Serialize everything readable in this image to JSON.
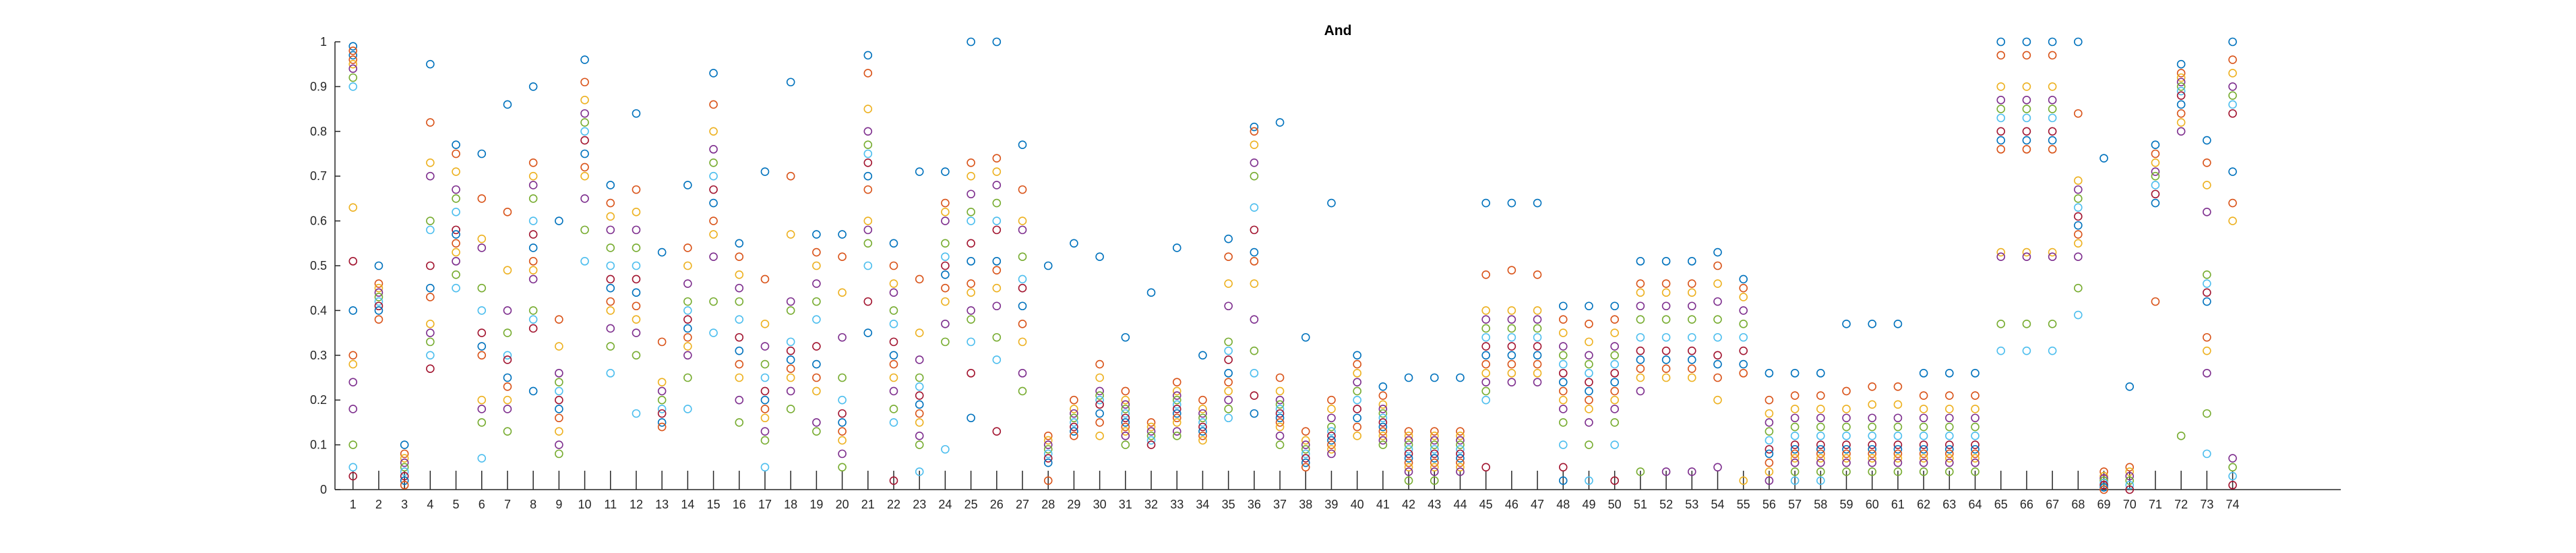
{
  "chart_data": {
    "type": "scatter",
    "title": "And",
    "xlabel": "",
    "ylabel": "",
    "xlim": [
      0.3,
      78.2
    ],
    "ylim": [
      0,
      1
    ],
    "grid": false,
    "legend": "none",
    "x_ticks": [
      "1",
      "2",
      "3",
      "4",
      "5",
      "6",
      "7",
      "8",
      "9",
      "10",
      "11",
      "12",
      "13",
      "14",
      "15",
      "16",
      "17",
      "18",
      "19",
      "20",
      "21",
      "22",
      "23",
      "24",
      "25",
      "26",
      "27",
      "28",
      "29",
      "30",
      "31",
      "32",
      "33",
      "34",
      "35",
      "36",
      "37",
      "38",
      "39",
      "40",
      "41",
      "42",
      "43",
      "44",
      "45",
      "46",
      "47",
      "48",
      "49",
      "50",
      "51",
      "52",
      "53",
      "54",
      "55",
      "56",
      "57",
      "58",
      "59",
      "60",
      "61",
      "62",
      "63",
      "64",
      "65",
      "66",
      "67",
      "68",
      "69",
      "70",
      "71",
      "72",
      "73",
      "74"
    ],
    "y_ticks": [
      "0",
      "0.1",
      "0.2",
      "0.3",
      "0.4",
      "0.5",
      "0.6",
      "0.7",
      "0.8",
      "0.9",
      "1"
    ],
    "marker": "open-circle",
    "palette": [
      "#0072bd",
      "#d95319",
      "#edb120",
      "#7e2f8e",
      "#77ac30",
      "#4dbeee",
      "#a2142f"
    ],
    "series": [
      {
        "x": 1,
        "y": [
          0.97,
          0.96,
          0.95,
          0.94,
          0.92,
          0.9,
          0.51,
          0.4,
          0.3,
          0.28,
          0.18,
          0.1,
          0.05,
          0.03,
          0.99,
          0.98,
          0.63,
          0.24
        ]
      },
      {
        "x": 2,
        "y": [
          0.5,
          0.46,
          0.45,
          0.44,
          0.43,
          0.42,
          0.41,
          0.4,
          0.38
        ]
      },
      {
        "x": 3,
        "y": [
          0.1,
          0.08,
          0.07,
          0.06,
          0.05,
          0.04,
          0.03,
          0.02,
          0.01
        ]
      },
      {
        "x": 4,
        "y": [
          0.95,
          0.82,
          0.73,
          0.7,
          0.6,
          0.58,
          0.5,
          0.45,
          0.43,
          0.37,
          0.35,
          0.33,
          0.3,
          0.27
        ]
      },
      {
        "x": 5,
        "y": [
          0.77,
          0.75,
          0.71,
          0.67,
          0.65,
          0.62,
          0.58,
          0.57,
          0.55,
          0.53,
          0.51,
          0.48,
          0.45
        ]
      },
      {
        "x": 6,
        "y": [
          0.75,
          0.65,
          0.56,
          0.54,
          0.45,
          0.4,
          0.35,
          0.32,
          0.3,
          0.2,
          0.18,
          0.15,
          0.07
        ]
      },
      {
        "x": 7,
        "y": [
          0.86,
          0.62,
          0.49,
          0.4,
          0.35,
          0.3,
          0.29,
          0.25,
          0.23,
          0.2,
          0.18,
          0.13
        ]
      },
      {
        "x": 8,
        "y": [
          0.9,
          0.73,
          0.7,
          0.68,
          0.65,
          0.6,
          0.57,
          0.54,
          0.51,
          0.49,
          0.47,
          0.4,
          0.38,
          0.36,
          0.22
        ]
      },
      {
        "x": 9,
        "y": [
          0.6,
          0.38,
          0.32,
          0.26,
          0.24,
          0.22,
          0.2,
          0.18,
          0.16,
          0.13,
          0.1,
          0.08
        ]
      },
      {
        "x": 10,
        "y": [
          0.96,
          0.91,
          0.87,
          0.84,
          0.82,
          0.8,
          0.78,
          0.75,
          0.72,
          0.7,
          0.65,
          0.58,
          0.51
        ]
      },
      {
        "x": 11,
        "y": [
          0.68,
          0.64,
          0.61,
          0.58,
          0.54,
          0.5,
          0.47,
          0.45,
          0.42,
          0.4,
          0.36,
          0.32,
          0.26
        ]
      },
      {
        "x": 12,
        "y": [
          0.84,
          0.67,
          0.62,
          0.58,
          0.54,
          0.5,
          0.47,
          0.44,
          0.41,
          0.38,
          0.35,
          0.3,
          0.17
        ]
      },
      {
        "x": 13,
        "y": [
          0.53,
          0.33,
          0.24,
          0.22,
          0.2,
          0.18,
          0.17,
          0.15,
          0.14
        ]
      },
      {
        "x": 14,
        "y": [
          0.68,
          0.54,
          0.5,
          0.46,
          0.42,
          0.4,
          0.38,
          0.36,
          0.34,
          0.32,
          0.3,
          0.25,
          0.18
        ]
      },
      {
        "x": 15,
        "y": [
          0.93,
          0.86,
          0.8,
          0.76,
          0.73,
          0.7,
          0.67,
          0.64,
          0.6,
          0.57,
          0.52,
          0.42,
          0.35
        ]
      },
      {
        "x": 16,
        "y": [
          0.55,
          0.52,
          0.48,
          0.45,
          0.42,
          0.38,
          0.34,
          0.31,
          0.28,
          0.25,
          0.2,
          0.15
        ]
      },
      {
        "x": 17,
        "y": [
          0.71,
          0.47,
          0.37,
          0.32,
          0.28,
          0.25,
          0.22,
          0.2,
          0.18,
          0.16,
          0.13,
          0.11,
          0.05
        ]
      },
      {
        "x": 18,
        "y": [
          0.91,
          0.7,
          0.57,
          0.42,
          0.4,
          0.33,
          0.31,
          0.29,
          0.27,
          0.25,
          0.22,
          0.18
        ]
      },
      {
        "x": 19,
        "y": [
          0.57,
          0.53,
          0.5,
          0.46,
          0.42,
          0.38,
          0.32,
          0.28,
          0.25,
          0.22,
          0.15,
          0.13
        ]
      },
      {
        "x": 20,
        "y": [
          0.57,
          0.52,
          0.44,
          0.34,
          0.25,
          0.2,
          0.17,
          0.15,
          0.13,
          0.11,
          0.08,
          0.05
        ]
      },
      {
        "x": 21,
        "y": [
          0.97,
          0.93,
          0.85,
          0.8,
          0.77,
          0.75,
          0.73,
          0.7,
          0.67,
          0.6,
          0.58,
          0.55,
          0.5,
          0.42,
          0.35
        ]
      },
      {
        "x": 22,
        "y": [
          0.55,
          0.5,
          0.46,
          0.44,
          0.4,
          0.37,
          0.33,
          0.3,
          0.28,
          0.25,
          0.22,
          0.18,
          0.15,
          0.02
        ]
      },
      {
        "x": 23,
        "y": [
          0.71,
          0.47,
          0.35,
          0.29,
          0.25,
          0.23,
          0.21,
          0.19,
          0.17,
          0.15,
          0.12,
          0.1,
          0.04
        ]
      },
      {
        "x": 24,
        "y": [
          0.71,
          0.64,
          0.62,
          0.6,
          0.55,
          0.52,
          0.5,
          0.48,
          0.45,
          0.42,
          0.37,
          0.33,
          0.09
        ]
      },
      {
        "x": 25,
        "y": [
          1.0,
          0.73,
          0.7,
          0.66,
          0.62,
          0.6,
          0.55,
          0.51,
          0.46,
          0.44,
          0.4,
          0.38,
          0.33,
          0.26,
          0.16
        ]
      },
      {
        "x": 26,
        "y": [
          1.0,
          0.74,
          0.71,
          0.68,
          0.64,
          0.6,
          0.58,
          0.51,
          0.49,
          0.45,
          0.41,
          0.34,
          0.29,
          0.13
        ]
      },
      {
        "x": 27,
        "y": [
          0.77,
          0.67,
          0.6,
          0.58,
          0.52,
          0.47,
          0.45,
          0.41,
          0.37,
          0.33,
          0.26,
          0.22
        ]
      },
      {
        "x": 28,
        "y": [
          0.5,
          0.12,
          0.11,
          0.1,
          0.09,
          0.08,
          0.07,
          0.06,
          0.02
        ]
      },
      {
        "x": 29,
        "y": [
          0.55,
          0.2,
          0.18,
          0.17,
          0.16,
          0.15,
          0.14,
          0.13,
          0.12
        ]
      },
      {
        "x": 30,
        "y": [
          0.52,
          0.28,
          0.25,
          0.22,
          0.21,
          0.2,
          0.19,
          0.17,
          0.15,
          0.12
        ]
      },
      {
        "x": 31,
        "y": [
          0.34,
          0.22,
          0.2,
          0.19,
          0.18,
          0.17,
          0.16,
          0.15,
          0.14,
          0.13,
          0.12,
          0.1
        ]
      },
      {
        "x": 32,
        "y": [
          0.44,
          0.15,
          0.14,
          0.13,
          0.12,
          0.11,
          0.1
        ]
      },
      {
        "x": 33,
        "y": [
          0.54,
          0.24,
          0.22,
          0.21,
          0.2,
          0.19,
          0.18,
          0.17,
          0.16,
          0.15,
          0.13,
          0.12
        ]
      },
      {
        "x": 34,
        "y": [
          0.3,
          0.2,
          0.18,
          0.17,
          0.16,
          0.15,
          0.14,
          0.13,
          0.12,
          0.11
        ]
      },
      {
        "x": 35,
        "y": [
          0.56,
          0.52,
          0.46,
          0.41,
          0.33,
          0.31,
          0.29,
          0.26,
          0.24,
          0.22,
          0.2,
          0.18,
          0.16
        ]
      },
      {
        "x": 36,
        "y": [
          0.81,
          0.8,
          0.77,
          0.73,
          0.7,
          0.63,
          0.58,
          0.53,
          0.51,
          0.46,
          0.38,
          0.31,
          0.26,
          0.21,
          0.17
        ]
      },
      {
        "x": 37,
        "y": [
          0.82,
          0.25,
          0.22,
          0.2,
          0.19,
          0.18,
          0.17,
          0.16,
          0.15,
          0.14,
          0.12,
          0.1
        ]
      },
      {
        "x": 38,
        "y": [
          0.34,
          0.13,
          0.11,
          0.1,
          0.09,
          0.08,
          0.07,
          0.06,
          0.05
        ]
      },
      {
        "x": 39,
        "y": [
          0.64,
          0.2,
          0.18,
          0.16,
          0.14,
          0.13,
          0.12,
          0.11,
          0.1,
          0.09,
          0.08
        ]
      },
      {
        "x": 40,
        "y": [
          0.3,
          0.28,
          0.26,
          0.24,
          0.22,
          0.2,
          0.18,
          0.16,
          0.14,
          0.12
        ]
      },
      {
        "x": 41,
        "y": [
          0.23,
          0.21,
          0.19,
          0.18,
          0.17,
          0.16,
          0.15,
          0.14,
          0.13,
          0.12,
          0.11,
          0.1
        ]
      },
      {
        "x": 42,
        "y": [
          0.25,
          0.13,
          0.12,
          0.11,
          0.1,
          0.09,
          0.08,
          0.07,
          0.06,
          0.05,
          0.04,
          0.02
        ]
      },
      {
        "x": 43,
        "y": [
          0.25,
          0.13,
          0.12,
          0.11,
          0.1,
          0.09,
          0.08,
          0.07,
          0.06,
          0.05,
          0.04,
          0.02
        ]
      },
      {
        "x": 44,
        "y": [
          0.25,
          0.13,
          0.12,
          0.11,
          0.1,
          0.09,
          0.08,
          0.07,
          0.06,
          0.05,
          0.04
        ]
      },
      {
        "x": 45,
        "y": [
          0.64,
          0.48,
          0.4,
          0.38,
          0.36,
          0.34,
          0.32,
          0.3,
          0.28,
          0.26,
          0.24,
          0.22,
          0.2,
          0.05
        ]
      },
      {
        "x": 46,
        "y": [
          0.64,
          0.49,
          0.4,
          0.38,
          0.36,
          0.34,
          0.32,
          0.3,
          0.28,
          0.26,
          0.24
        ]
      },
      {
        "x": 47,
        "y": [
          0.64,
          0.48,
          0.4,
          0.38,
          0.36,
          0.34,
          0.32,
          0.3,
          0.28,
          0.26,
          0.24
        ]
      },
      {
        "x": 48,
        "y": [
          0.41,
          0.38,
          0.35,
          0.32,
          0.3,
          0.28,
          0.26,
          0.24,
          0.22,
          0.2,
          0.18,
          0.15,
          0.1,
          0.05,
          0.02
        ]
      },
      {
        "x": 49,
        "y": [
          0.41,
          0.37,
          0.33,
          0.3,
          0.28,
          0.26,
          0.24,
          0.22,
          0.2,
          0.18,
          0.15,
          0.1,
          0.02
        ]
      },
      {
        "x": 50,
        "y": [
          0.41,
          0.38,
          0.35,
          0.32,
          0.3,
          0.28,
          0.26,
          0.24,
          0.22,
          0.2,
          0.18,
          0.15,
          0.1,
          0.02
        ]
      },
      {
        "x": 51,
        "y": [
          0.51,
          0.46,
          0.44,
          0.41,
          0.38,
          0.34,
          0.31,
          0.29,
          0.27,
          0.25,
          0.22,
          0.04
        ]
      },
      {
        "x": 52,
        "y": [
          0.51,
          0.46,
          0.44,
          0.41,
          0.38,
          0.34,
          0.31,
          0.29,
          0.27,
          0.25,
          0.04
        ]
      },
      {
        "x": 53,
        "y": [
          0.51,
          0.46,
          0.44,
          0.41,
          0.38,
          0.34,
          0.31,
          0.29,
          0.27,
          0.25,
          0.04
        ]
      },
      {
        "x": 54,
        "y": [
          0.53,
          0.5,
          0.46,
          0.42,
          0.38,
          0.34,
          0.3,
          0.28,
          0.25,
          0.2,
          0.05
        ]
      },
      {
        "x": 55,
        "y": [
          0.47,
          0.45,
          0.43,
          0.4,
          0.37,
          0.34,
          0.31,
          0.28,
          0.26,
          0.02
        ]
      },
      {
        "x": 56,
        "y": [
          0.26,
          0.2,
          0.17,
          0.15,
          0.13,
          0.11,
          0.09,
          0.08,
          0.06,
          0.04,
          0.02
        ]
      },
      {
        "x": 57,
        "y": [
          0.26,
          0.21,
          0.18,
          0.16,
          0.14,
          0.12,
          0.1,
          0.09,
          0.08,
          0.07,
          0.06,
          0.04,
          0.02
        ]
      },
      {
        "x": 58,
        "y": [
          0.26,
          0.21,
          0.18,
          0.16,
          0.14,
          0.12,
          0.1,
          0.09,
          0.08,
          0.07,
          0.06,
          0.04,
          0.02
        ]
      },
      {
        "x": 59,
        "y": [
          0.37,
          0.22,
          0.18,
          0.16,
          0.14,
          0.12,
          0.1,
          0.09,
          0.08,
          0.07,
          0.06,
          0.04
        ]
      },
      {
        "x": 60,
        "y": [
          0.37,
          0.23,
          0.19,
          0.16,
          0.14,
          0.12,
          0.1,
          0.09,
          0.08,
          0.07,
          0.06,
          0.04
        ]
      },
      {
        "x": 61,
        "y": [
          0.37,
          0.23,
          0.19,
          0.16,
          0.14,
          0.12,
          0.1,
          0.09,
          0.08,
          0.07,
          0.06,
          0.04
        ]
      },
      {
        "x": 62,
        "y": [
          0.26,
          0.21,
          0.18,
          0.16,
          0.14,
          0.12,
          0.1,
          0.09,
          0.08,
          0.07,
          0.06,
          0.04
        ]
      },
      {
        "x": 63,
        "y": [
          0.26,
          0.21,
          0.18,
          0.16,
          0.14,
          0.12,
          0.1,
          0.09,
          0.08,
          0.07,
          0.06,
          0.04
        ]
      },
      {
        "x": 64,
        "y": [
          0.26,
          0.21,
          0.18,
          0.16,
          0.14,
          0.12,
          0.1,
          0.09,
          0.08,
          0.07,
          0.06,
          0.04
        ]
      },
      {
        "x": 65,
        "y": [
          1.0,
          0.97,
          0.9,
          0.87,
          0.85,
          0.83,
          0.8,
          0.78,
          0.76,
          0.53,
          0.52,
          0.37,
          0.31
        ]
      },
      {
        "x": 66,
        "y": [
          1.0,
          0.97,
          0.9,
          0.87,
          0.85,
          0.83,
          0.8,
          0.78,
          0.76,
          0.53,
          0.52,
          0.37,
          0.31
        ]
      },
      {
        "x": 67,
        "y": [
          1.0,
          0.97,
          0.9,
          0.87,
          0.85,
          0.83,
          0.8,
          0.78,
          0.76,
          0.53,
          0.52,
          0.37,
          0.31
        ]
      },
      {
        "x": 68,
        "y": [
          1.0,
          0.84,
          0.69,
          0.67,
          0.65,
          0.63,
          0.61,
          0.59,
          0.57,
          0.55,
          0.52,
          0.45,
          0.39
        ]
      },
      {
        "x": 69,
        "y": [
          0.74,
          0.04,
          0.03,
          0.025,
          0.02,
          0.015,
          0.01,
          0.005,
          0.0
        ]
      },
      {
        "x": 70,
        "y": [
          0.23,
          0.05,
          0.04,
          0.03,
          0.02,
          0.01,
          0.0
        ]
      },
      {
        "x": 71,
        "y": [
          0.77,
          0.75,
          0.73,
          0.71,
          0.7,
          0.68,
          0.66,
          0.64,
          0.42
        ]
      },
      {
        "x": 72,
        "y": [
          0.95,
          0.93,
          0.92,
          0.91,
          0.9,
          0.89,
          0.88,
          0.86,
          0.84,
          0.82,
          0.8,
          0.12
        ]
      },
      {
        "x": 73,
        "y": [
          0.78,
          0.73,
          0.68,
          0.62,
          0.48,
          0.46,
          0.44,
          0.42,
          0.34,
          0.31,
          0.26,
          0.17,
          0.08
        ]
      },
      {
        "x": 74,
        "y": [
          1.0,
          0.96,
          0.93,
          0.9,
          0.88,
          0.86,
          0.84,
          0.71,
          0.64,
          0.6,
          0.07,
          0.05,
          0.03,
          0.01
        ]
      }
    ]
  }
}
